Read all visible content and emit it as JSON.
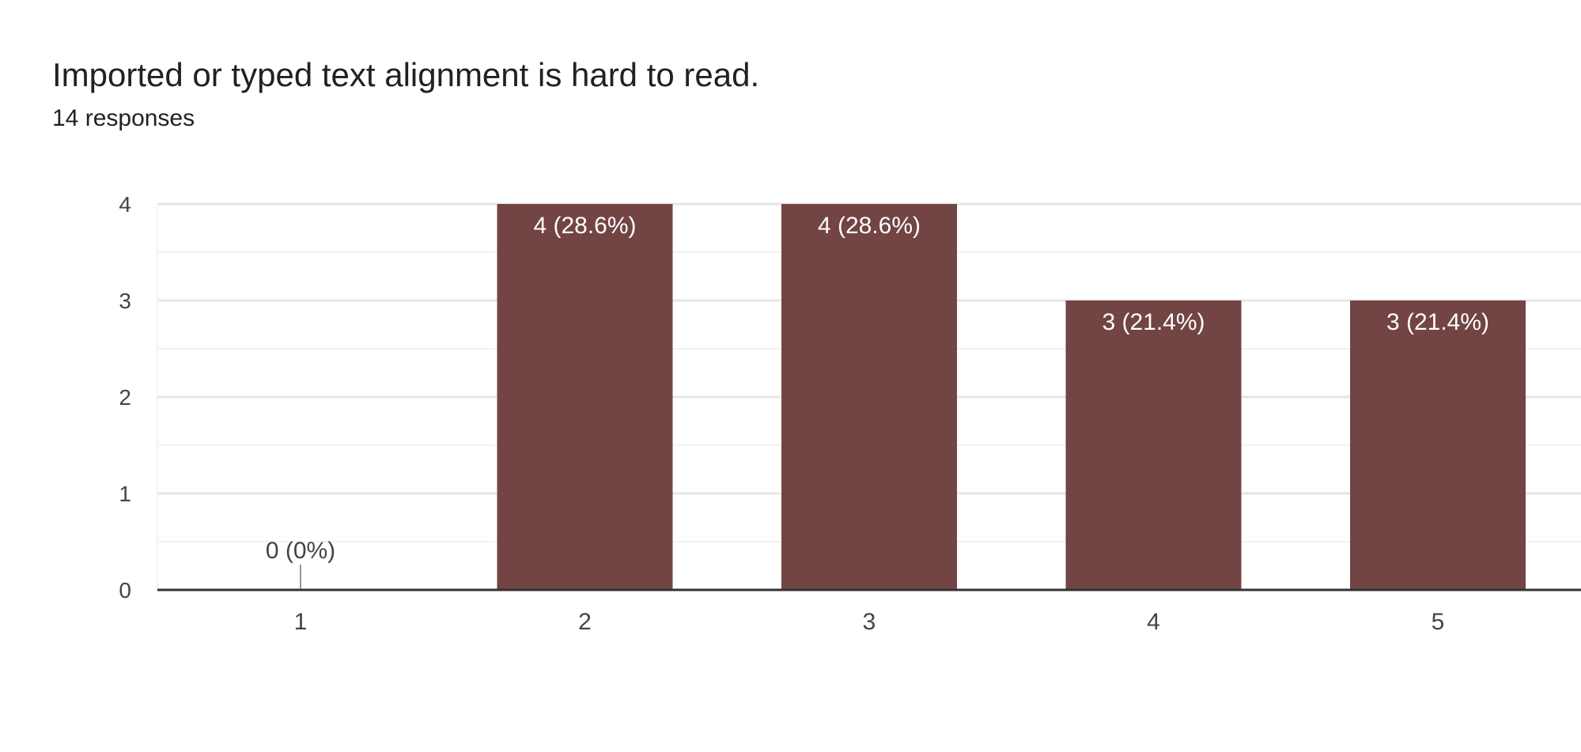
{
  "header": {
    "title": "Imported or typed text alignment is hard to read.",
    "responses": "14 responses"
  },
  "colors": {
    "bar": "#734444",
    "bar_label_inside": "#ffffff",
    "label_outside": "#444444",
    "gridline_major": "#e6e6e6",
    "gridline_minor": "#f2f2f2",
    "baseline": "#333333",
    "tick_text": "#444444"
  },
  "chart_data": {
    "type": "bar",
    "categories": [
      "1",
      "2",
      "3",
      "4",
      "5"
    ],
    "values": [
      0,
      4,
      4,
      3,
      3
    ],
    "data_labels": [
      "0 (0%)",
      "4 (28.6%)",
      "4 (28.6%)",
      "3 (21.4%)",
      "3 (21.4%)"
    ],
    "title": "Imported or typed text alignment is hard to read.",
    "subtitle": "14 responses",
    "xlabel": "",
    "ylabel": "",
    "ylim": [
      0,
      4
    ],
    "yticks": [
      "0",
      "1",
      "2",
      "3",
      "4"
    ],
    "grid": true,
    "legend": "none"
  }
}
